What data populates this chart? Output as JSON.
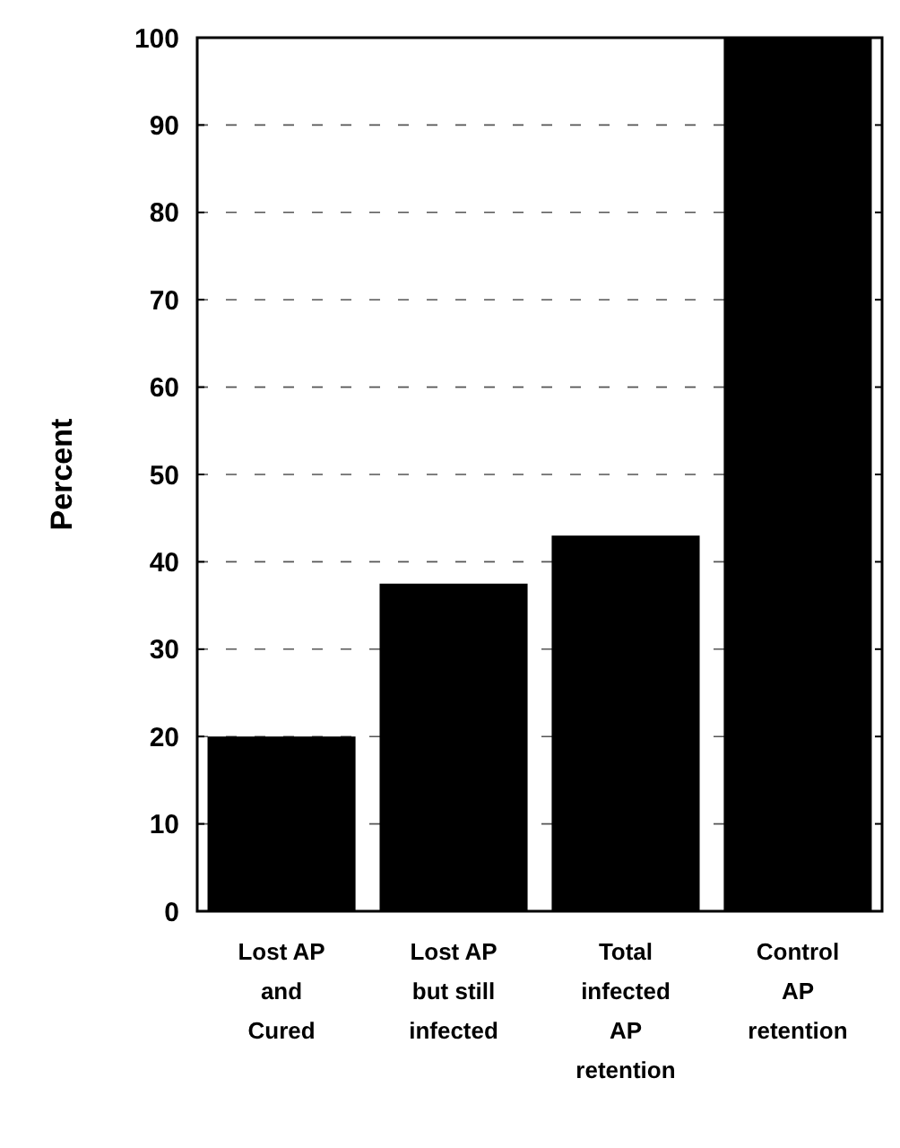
{
  "chart_data": {
    "type": "bar",
    "ylabel": "Percent",
    "categories": [
      "Lost AP\nand\nCured",
      "Lost AP\nbut still\ninfected",
      "Total\ninfected\nAP\nretention",
      "Control\nAP\nretention"
    ],
    "values": [
      20,
      37.5,
      43,
      100
    ],
    "color": "#000000",
    "ylim": [
      0,
      100
    ],
    "yticks": [
      0,
      10,
      20,
      30,
      40,
      50,
      60,
      70,
      80,
      90,
      100
    ],
    "grid": "y"
  }
}
